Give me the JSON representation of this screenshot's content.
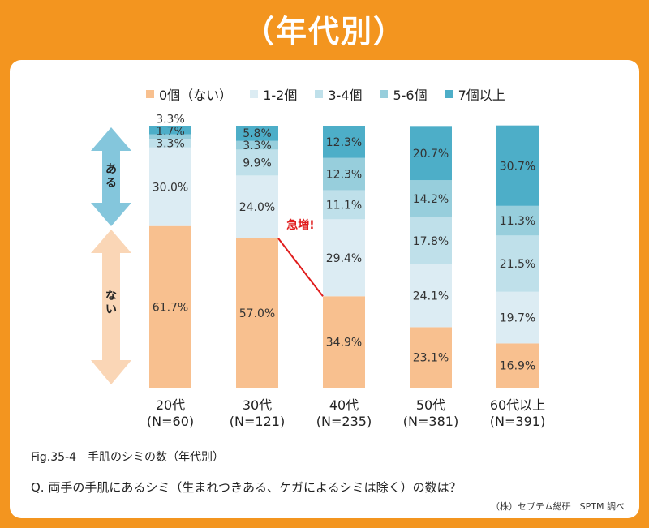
{
  "header": {
    "title": "（年代別）"
  },
  "colors": {
    "frame": "#f3951f",
    "none": "#f8c08f",
    "c1_2": "#dcecf3",
    "c3_4": "#bfe0ea",
    "c5_6": "#97cedc",
    "c7plus": "#4daec8",
    "arrow_top": "#84c6dc",
    "arrow_bottom": "#fad6b6",
    "callout": "#e01b1b"
  },
  "chart_data": {
    "type": "bar",
    "stacked": true,
    "orientation": "vertical",
    "categories": [
      "20代\n(N=60)",
      "30代\n(N=121)",
      "40代\n(N=235)",
      "50代\n(N=381)",
      "60代以上\n(N=391)"
    ],
    "category_lines": [
      [
        "20代",
        "(N=60)"
      ],
      [
        "30代",
        "(N=121)"
      ],
      [
        "40代",
        "(N=235)"
      ],
      [
        "50代",
        "(N=381)"
      ],
      [
        "60代以上",
        "(N=391)"
      ]
    ],
    "ylim": [
      0,
      100
    ],
    "unit": "%",
    "series": [
      {
        "name": "0個（ない）",
        "color": "#f8c08f",
        "values": [
          61.7,
          57.0,
          34.9,
          23.1,
          16.9
        ],
        "labels": [
          "61.7%",
          "57.0%",
          "34.9%",
          "23.1%",
          "16.9%"
        ]
      },
      {
        "name": "1-2個",
        "color": "#dcecf3",
        "values": [
          30.0,
          24.0,
          29.4,
          24.1,
          19.7
        ],
        "labels": [
          "30.0%",
          "24.0%",
          "29.4%",
          "24.1%",
          "19.7%"
        ]
      },
      {
        "name": "3-4個",
        "color": "#bfe0ea",
        "values": [
          3.3,
          9.9,
          11.1,
          17.8,
          21.5
        ],
        "labels": [
          "3.3%",
          "9.9%",
          "11.1%",
          "17.8%",
          "21.5%"
        ]
      },
      {
        "name": "5-6個",
        "color": "#97cedc",
        "values": [
          1.7,
          3.3,
          12.3,
          14.2,
          11.3
        ],
        "labels": [
          "1.7%",
          "3.3%",
          "12.3%",
          "14.2%",
          "11.3%"
        ]
      },
      {
        "name": "7個以上",
        "color": "#4daec8",
        "values": [
          3.3,
          5.8,
          12.3,
          20.7,
          30.7
        ],
        "labels": [
          "3.3%",
          "5.8%",
          "12.3%",
          "20.7%",
          "30.7%"
        ]
      }
    ],
    "legend_position": "top",
    "grid": false,
    "side_labels": {
      "top": "ある",
      "bottom": "ない"
    },
    "annotation": "急増!"
  },
  "caption": {
    "figure": "Fig.35-4　手肌のシミの数（年代別）",
    "question": "Q. 両手の手肌にあるシミ（生まれつきある、ケガによるシミは除く）の数は？",
    "source": "（株）セプテム総研　SPTM 調べ"
  }
}
